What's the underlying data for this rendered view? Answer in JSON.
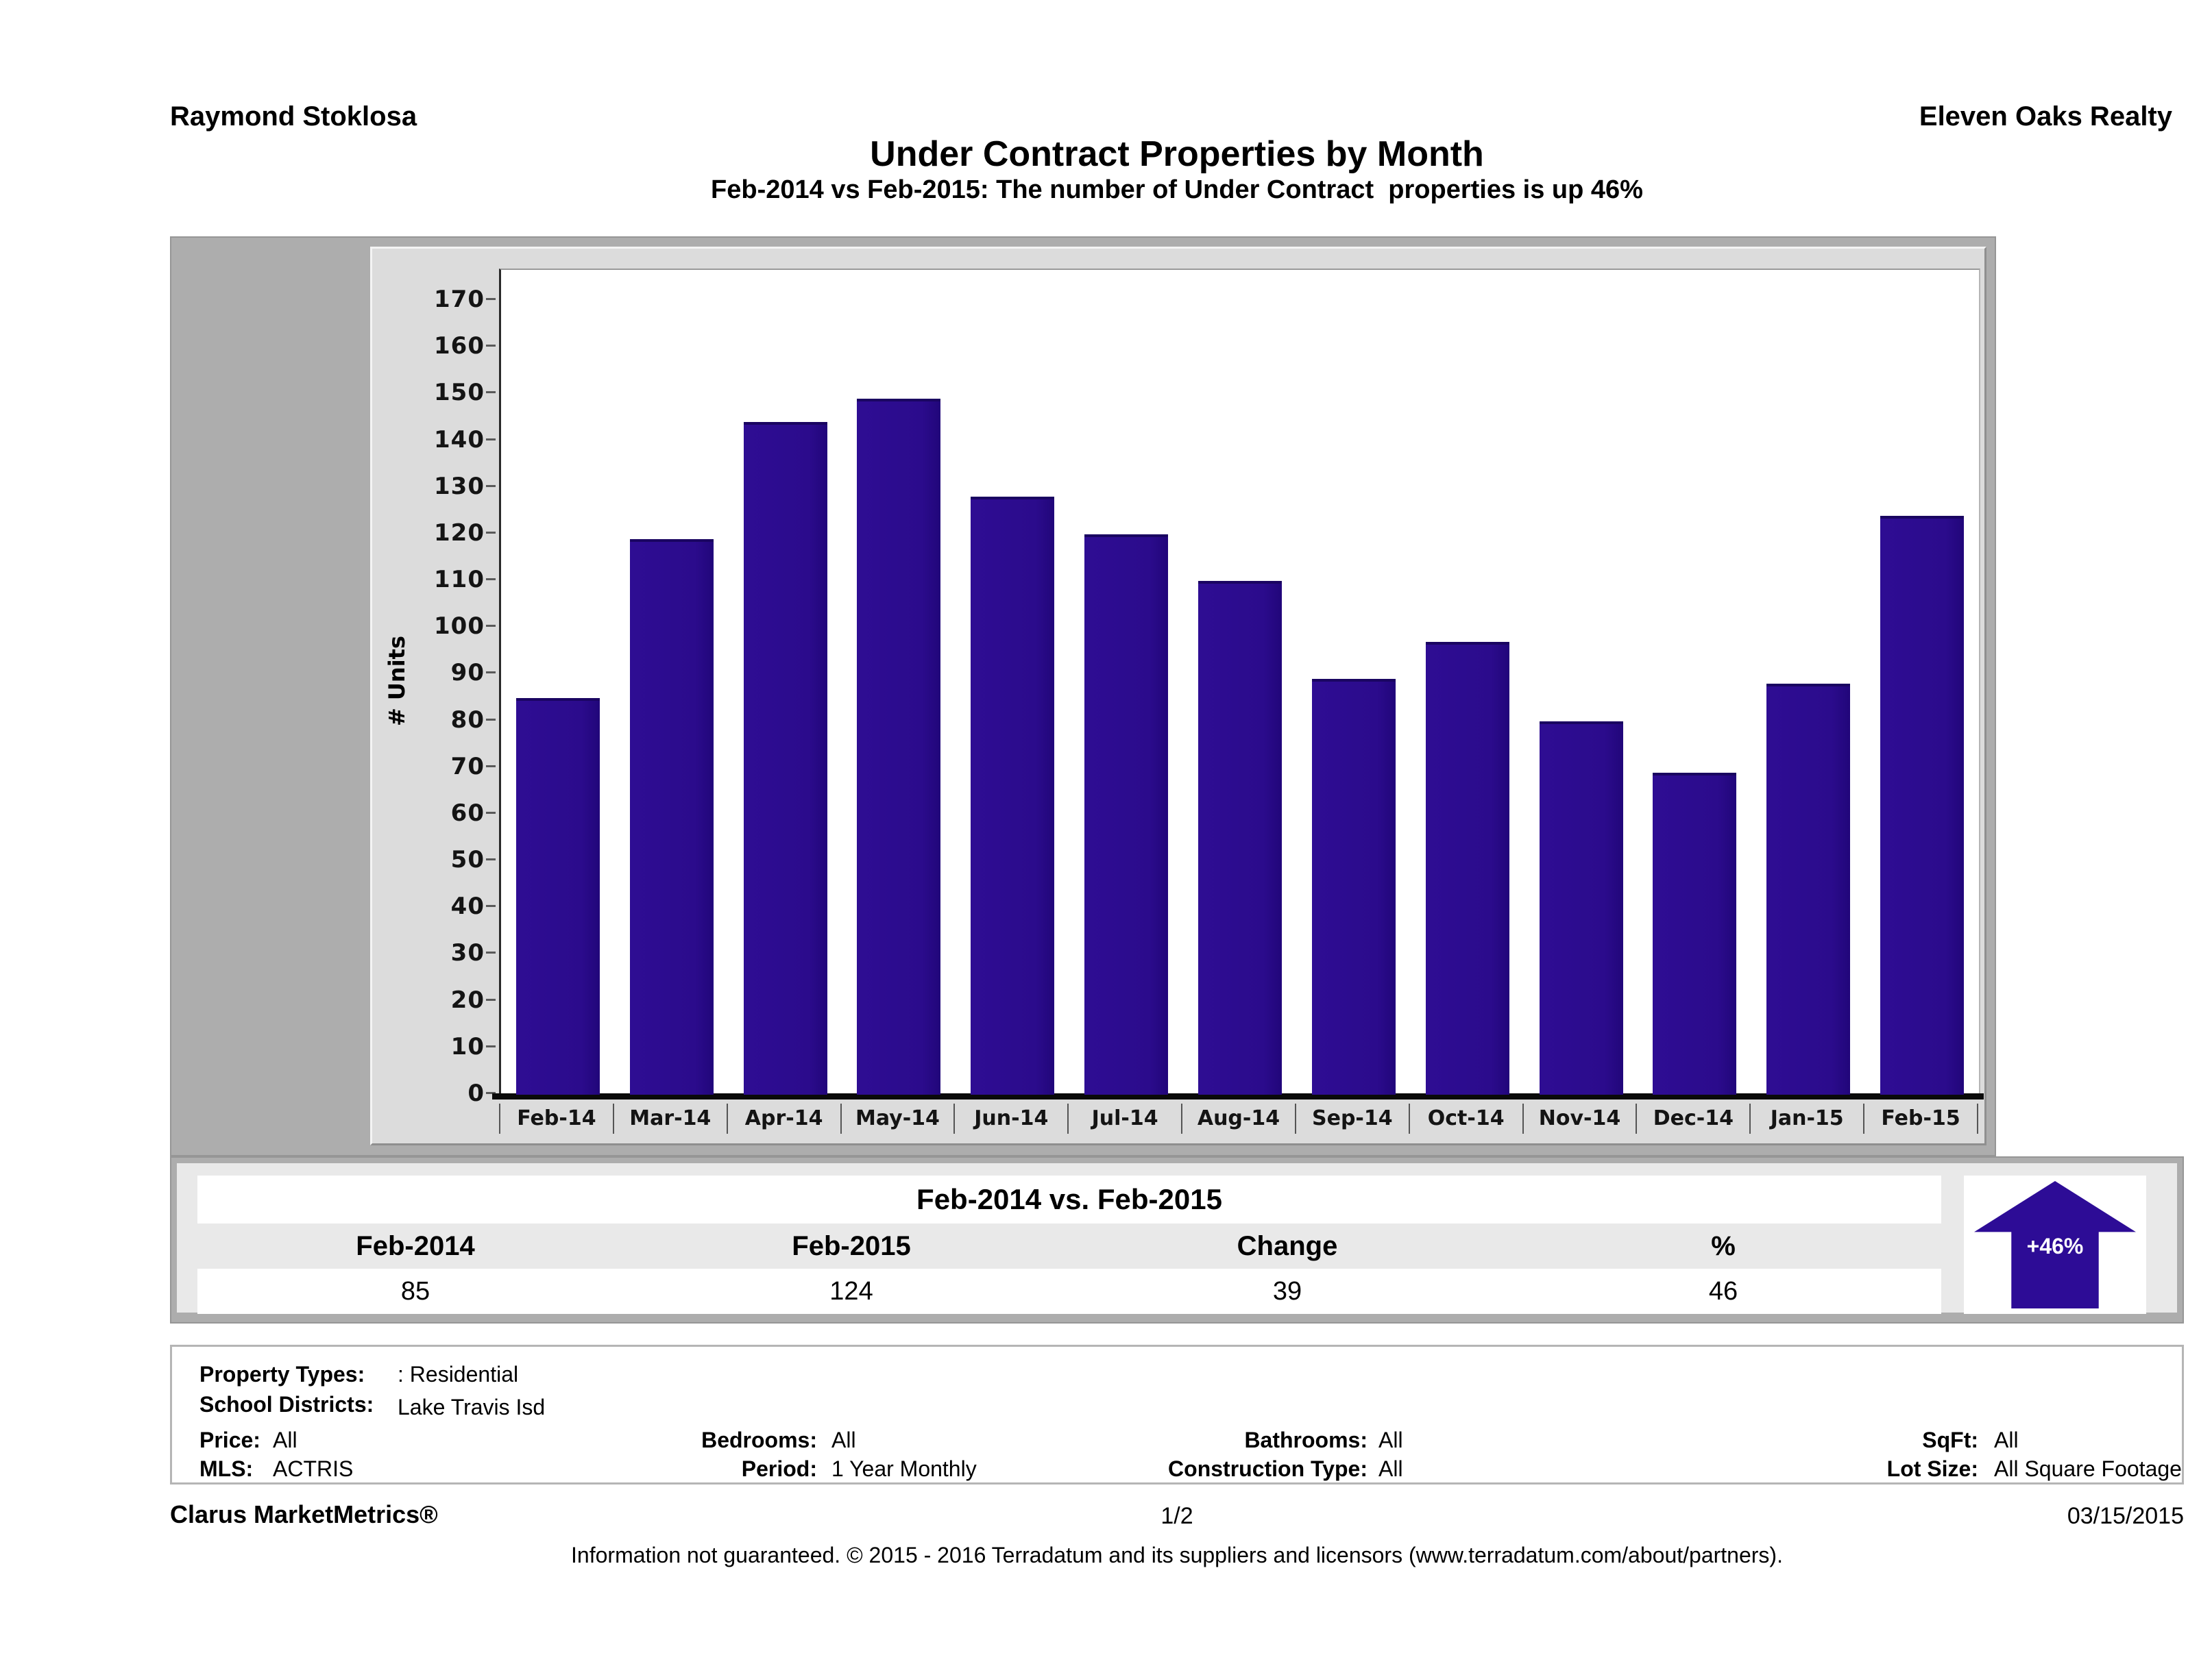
{
  "header": {
    "agent": "Raymond Stoklosa",
    "company": "Eleven Oaks Realty",
    "title": "Under Contract Properties by Month",
    "subtitle": "Feb-2014 vs Feb-2015: The number of Under Contract  properties is up 46%"
  },
  "chart_data": {
    "type": "bar",
    "title": "Under Contract Properties by Month",
    "categories": [
      "Feb-14",
      "Mar-14",
      "Apr-14",
      "May-14",
      "Jun-14",
      "Jul-14",
      "Aug-14",
      "Sep-14",
      "Oct-14",
      "Nov-14",
      "Dec-14",
      "Jan-15",
      "Feb-15"
    ],
    "values": [
      85,
      119,
      144,
      149,
      128,
      120,
      110,
      89,
      97,
      80,
      69,
      88,
      124
    ],
    "xlabel": "",
    "ylabel": "# Units",
    "ylim": [
      0,
      176.6
    ],
    "yticks": [
      0,
      10,
      20,
      30,
      40,
      50,
      60,
      70,
      80,
      90,
      100,
      110,
      120,
      130,
      140,
      150,
      160,
      170
    ],
    "grid": "horizontal-dotted",
    "legend_position": "none",
    "bar_color": "#2B0B8C"
  },
  "summary": {
    "title": "Feb-2014 vs. Feb-2015",
    "columns": [
      "Feb-2014",
      "Feb-2015",
      "Change",
      "%"
    ],
    "values": [
      "85",
      "124",
      "39",
      "46"
    ],
    "badge": "+46%",
    "badge_color": "#2D0C96"
  },
  "filters": {
    "property_types_label": "Property Types:",
    "property_types": ": Residential",
    "school_districts_label": "School Districts:",
    "school_districts": "Lake Travis Isd",
    "price_label": "Price:",
    "price": "All",
    "bedrooms_label": "Bedrooms:",
    "bedrooms": "All",
    "bathrooms_label": "Bathrooms:",
    "bathrooms": "All",
    "sqft_label": "SqFt:",
    "sqft": "All",
    "mls_label": "MLS:",
    "mls": "ACTRIS",
    "period_label": "Period:",
    "period": "1 Year Monthly",
    "construction_label": "Construction Type:",
    "construction": "All",
    "lot_label": "Lot Size:",
    "lot": "All Square Footage"
  },
  "footer": {
    "brand": "Clarus MarketMetrics®",
    "page": "1/2",
    "date": "03/15/2015",
    "disclaimer": "Information not guaranteed. © 2015 - 2016 Terradatum and its suppliers and licensors (www.terradatum.com/about/partners)."
  }
}
